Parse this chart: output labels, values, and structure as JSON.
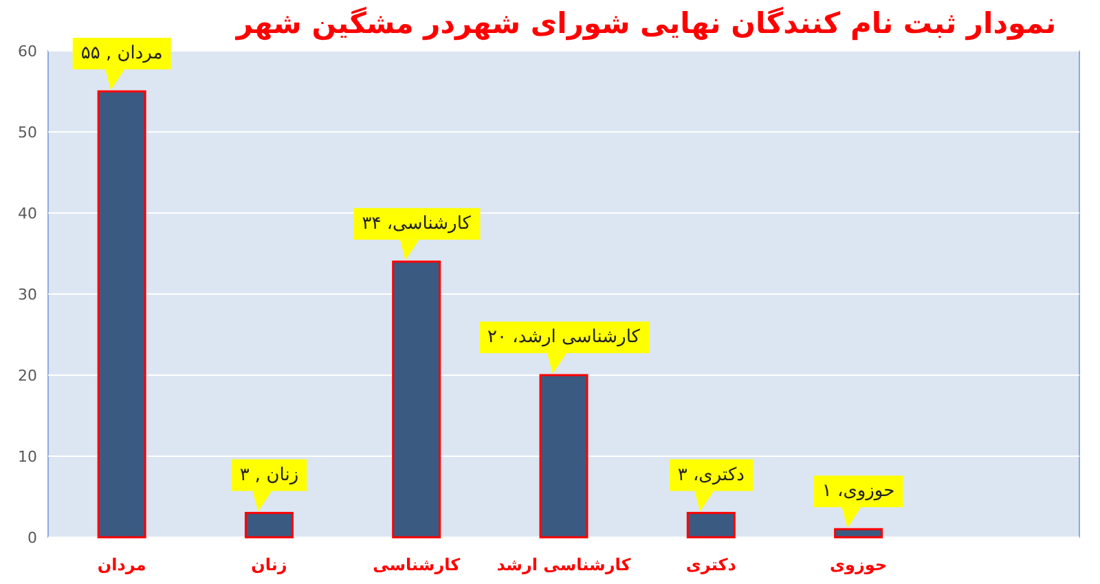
{
  "chart_data": {
    "type": "bar",
    "title": "نمودار ثبت نام کنندگان نهایی شورای شهردر مشگین شهر",
    "categories": [
      "مردان",
      "زنان",
      "کارشناسی",
      "کارشناسی ارشد",
      "دکتری",
      "حوزوی",
      null
    ],
    "values": [
      55,
      3,
      34,
      20,
      3,
      1,
      null
    ],
    "value_labels": [
      "مردان , ۵۵",
      "زنان , ۳",
      "کارشناسی، ۳۴",
      "کارشناسی ارشد، ۲۰",
      "دکتری، ۳",
      "حوزوی، ۱",
      null
    ],
    "color": "#3b5a82",
    "ylim": [
      0,
      60
    ],
    "yticks": [
      0,
      10,
      20,
      30,
      40,
      50,
      60
    ],
    "grid": "y"
  }
}
